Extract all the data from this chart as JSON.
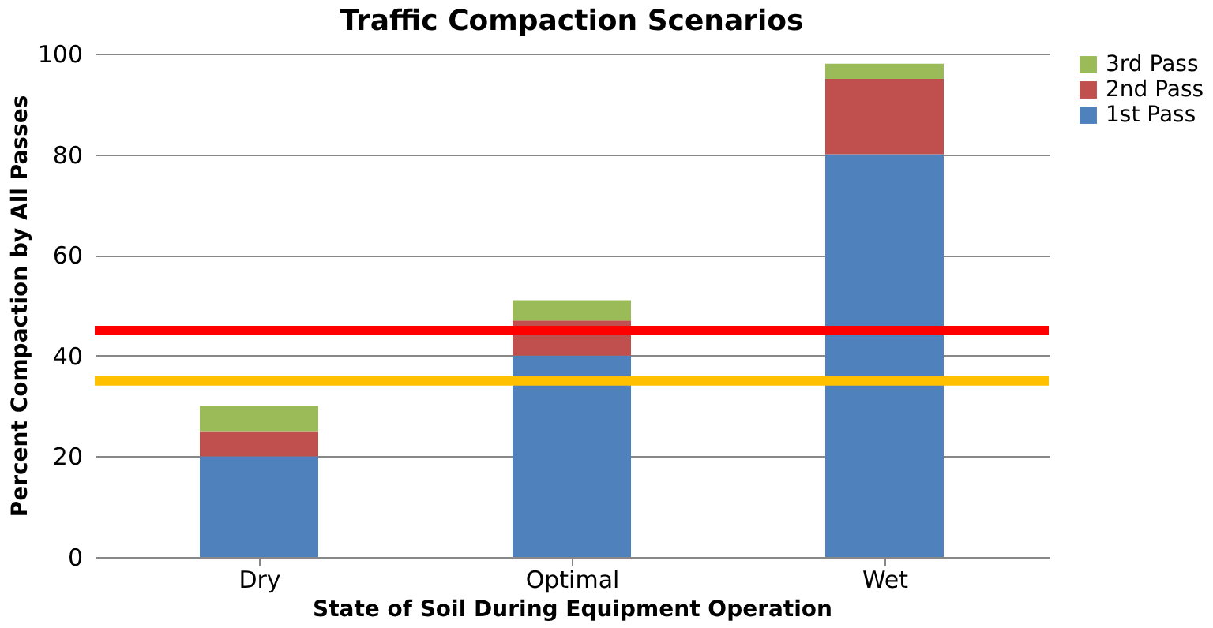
{
  "chart_data": {
    "type": "bar",
    "stacked": true,
    "title": "Traffic Compaction Scenarios",
    "xlabel": "State of Soil During Equipment Operation",
    "ylabel": "Percent Compaction by All Passes",
    "categories": [
      "Dry",
      "Optimal",
      "Wet"
    ],
    "series": [
      {
        "name": "1st Pass",
        "color": "#4f81bd",
        "values": [
          20,
          40,
          80
        ]
      },
      {
        "name": "2nd Pass",
        "color": "#c0504d",
        "values": [
          5,
          7,
          15
        ]
      },
      {
        "name": "3rd Pass",
        "color": "#9bbb59",
        "values": [
          5,
          4,
          3
        ]
      }
    ],
    "ylim": [
      0,
      100
    ],
    "yticks": [
      0,
      20,
      40,
      60,
      80,
      100
    ],
    "grid": "y",
    "legend": "right",
    "ref_lines": [
      {
        "axis": "y",
        "value": 45,
        "color": "#ff0000"
      },
      {
        "axis": "y",
        "value": 35,
        "color": "#ffc000"
      }
    ]
  }
}
